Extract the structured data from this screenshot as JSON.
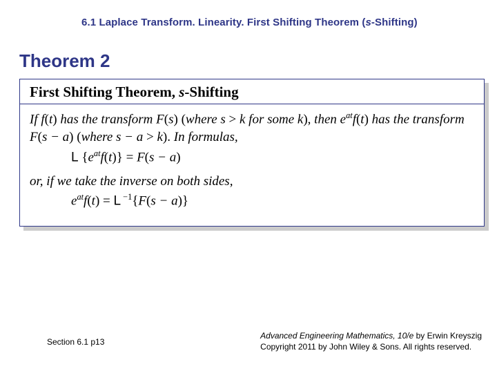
{
  "header": {
    "section_num": "6.1",
    "title_a": "Laplace Transform.  Linearity.  First Shifting Theorem (",
    "title_s": "s",
    "title_b": "-Shifting)"
  },
  "theorem_label": "Theorem 2",
  "box": {
    "title_a": "First Shifting Theorem, ",
    "title_s": "s",
    "title_b": "-Shifting",
    "para1_a": "If f",
    "para1_b": "(",
    "para1_c": "t",
    "para1_d": ") ",
    "para1_e": "has the transform F",
    "para1_f": "(",
    "para1_g": "s",
    "para1_h": ") (",
    "para1_i": "where s ",
    "para1_j": "> ",
    "para1_k": "k for some k",
    "para1_l": "), ",
    "para1_m": "then e",
    "para1_sup1": "at",
    "para1_n": "f",
    "para1_o": "(",
    "para1_p": "t",
    "para1_q": ") ",
    "para1_r": "has the transform F",
    "para1_s": "(",
    "para1_t": "s − a",
    "para1_u": ") (",
    "para1_v": "where s − a ",
    "para1_w": "> ",
    "para1_x": "k",
    "para1_y": "). ",
    "para1_z": "In formulas,",
    "formula1_L": "L",
    "formula1_a": " {",
    "formula1_b": "e",
    "formula1_sup": "at",
    "formula1_c": "f",
    "formula1_d": "(",
    "formula1_e": "t",
    "formula1_f": ")} = ",
    "formula1_g": "F",
    "formula1_h": "(",
    "formula1_i": "s − a",
    "formula1_j": ")",
    "para2": "or, if we take the inverse on both sides,",
    "formula2_a": "e",
    "formula2_sup1": "at",
    "formula2_b": "f",
    "formula2_c": "(",
    "formula2_d": "t",
    "formula2_e": ") = ",
    "formula2_L": "L",
    "formula2_sup2": " −1",
    "formula2_f": "{",
    "formula2_g": "F",
    "formula2_h": "(",
    "formula2_i": "s − a",
    "formula2_j": ")}"
  },
  "footer": {
    "left": "Section 6.1  p13",
    "right_title": "Advanced Engineering Mathematics, 10/e",
    "right_by": " by Erwin Kreyszig",
    "right_copy": "Copyright 2011 by John Wiley & Sons. All rights reserved."
  },
  "colors": {
    "accent": "#2e3687",
    "shadow": "#cbcbcb",
    "bg": "#ffffff",
    "text": "#000000"
  }
}
